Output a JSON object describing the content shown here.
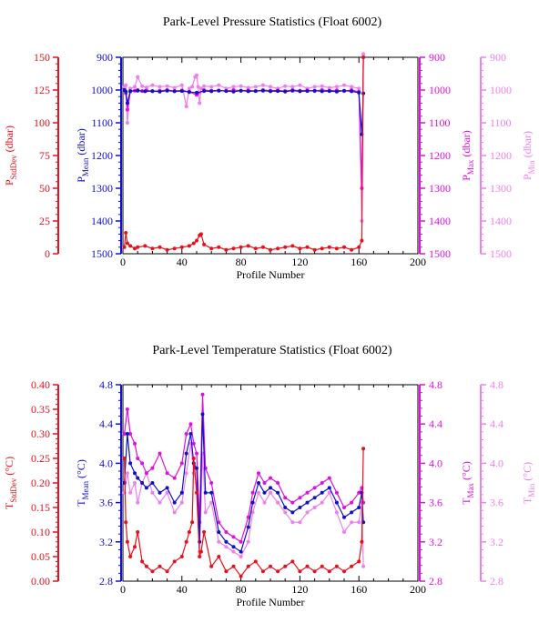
{
  "chart_data": [
    {
      "type": "line",
      "title": "Park-Level Pressure Statistics (Float 6002)",
      "xlabel": "Profile Number",
      "xlim": [
        0,
        200
      ],
      "xticks": [
        "0",
        "40",
        "80",
        "120",
        "160",
        "200"
      ],
      "axes": [
        {
          "key": "std",
          "label": "P",
          "sub": "StdDev",
          "unit": " (dbar)",
          "color": "#e8101a",
          "side": "left-outer",
          "lim": [
            0,
            150
          ],
          "reversed": false,
          "ticks": [
            "0",
            "25",
            "50",
            "75",
            "100",
            "125",
            "150"
          ]
        },
        {
          "key": "mean",
          "label": "P",
          "sub": "Mean",
          "unit": " (dbar)",
          "color": "#1010c8",
          "side": "left-inner",
          "lim": [
            900,
            1500
          ],
          "reversed": true,
          "ticks": [
            "900",
            "1000",
            "1100",
            "1200",
            "1300",
            "1400",
            "1500"
          ]
        },
        {
          "key": "max",
          "label": "P",
          "sub": "Max",
          "unit": " (dbar)",
          "color": "#e010e0",
          "side": "right-inner",
          "lim": [
            900,
            1500
          ],
          "reversed": true,
          "ticks": [
            "900",
            "1000",
            "1100",
            "1200",
            "1300",
            "1400",
            "1500"
          ]
        },
        {
          "key": "min",
          "label": "P",
          "sub": "Min",
          "unit": " (dbar)",
          "color": "#ee80ee",
          "side": "right-outer",
          "lim": [
            900,
            1500
          ],
          "reversed": true,
          "ticks": [
            "900",
            "1000",
            "1100",
            "1200",
            "1300",
            "1400",
            "1500"
          ]
        }
      ],
      "series": [
        {
          "axis": "min",
          "x": [
            1,
            2,
            3,
            5,
            8,
            10,
            13,
            16,
            20,
            25,
            30,
            35,
            40,
            43,
            45,
            47,
            49,
            50,
            51,
            52,
            53,
            55,
            60,
            65,
            70,
            75,
            80,
            85,
            90,
            95,
            100,
            105,
            110,
            115,
            120,
            125,
            130,
            135,
            140,
            145,
            150,
            155,
            160,
            162,
            163
          ],
          "values": [
            990,
            985,
            1100,
            995,
            990,
            960,
            988,
            992,
            985,
            990,
            988,
            993,
            985,
            1050,
            995,
            990,
            960,
            955,
            990,
            1040,
            995,
            988,
            990,
            985,
            995,
            990,
            988,
            993,
            990,
            985,
            990,
            995,
            988,
            990,
            985,
            995,
            990,
            988,
            993,
            990,
            985,
            990,
            995,
            1400,
            890
          ]
        },
        {
          "axis": "max",
          "x": [
            1,
            2,
            3,
            5,
            8,
            10,
            13,
            16,
            20,
            25,
            30,
            35,
            40,
            45,
            50,
            55,
            60,
            65,
            70,
            75,
            80,
            85,
            90,
            95,
            100,
            105,
            110,
            115,
            120,
            125,
            130,
            135,
            140,
            145,
            150,
            155,
            160,
            162,
            163
          ],
          "values": [
            1000,
            1010,
            1060,
            1005,
            1002,
            1000,
            1003,
            1001,
            1004,
            1002,
            1000,
            1003,
            1001,
            1005,
            1015,
            1000,
            1002,
            1001,
            1003,
            1000,
            1002,
            1001,
            1003,
            1000,
            1002,
            1001,
            1003,
            1000,
            1002,
            1001,
            1003,
            1000,
            1002,
            1001,
            1003,
            1000,
            1005,
            1300,
            900
          ]
        },
        {
          "axis": "mean",
          "x": [
            1,
            2,
            3,
            5,
            10,
            15,
            20,
            25,
            30,
            35,
            40,
            45,
            50,
            55,
            60,
            65,
            70,
            75,
            80,
            85,
            90,
            95,
            100,
            105,
            110,
            115,
            120,
            125,
            130,
            135,
            140,
            145,
            150,
            155,
            160,
            162,
            163
          ],
          "values": [
            1000,
            1005,
            1040,
            1003,
            1002,
            1004,
            1003,
            1005,
            1002,
            1004,
            1003,
            1006,
            1008,
            1003,
            1004,
            1002,
            1003,
            1005,
            1002,
            1004,
            1003,
            1002,
            1004,
            1003,
            1005,
            1002,
            1004,
            1003,
            1002,
            1004,
            1003,
            1005,
            1002,
            1004,
            1008,
            1135,
            1010
          ]
        },
        {
          "axis": "std",
          "x": [
            1,
            2,
            3,
            5,
            8,
            10,
            15,
            20,
            25,
            30,
            35,
            40,
            45,
            48,
            50,
            52,
            53,
            55,
            60,
            65,
            70,
            75,
            80,
            85,
            90,
            95,
            100,
            105,
            110,
            115,
            120,
            125,
            130,
            135,
            140,
            145,
            150,
            155,
            160,
            162,
            163
          ],
          "values": [
            5,
            16,
            8,
            6,
            4,
            5,
            6,
            4,
            5,
            3,
            4,
            5,
            6,
            8,
            10,
            14,
            15,
            7,
            4,
            5,
            3,
            4,
            5,
            6,
            4,
            5,
            3,
            4,
            5,
            6,
            4,
            5,
            3,
            4,
            5,
            4,
            5,
            3,
            5,
            10,
            150
          ]
        }
      ]
    },
    {
      "type": "line",
      "title": "Park-Level Temperature Statistics (Float 6002)",
      "xlabel": "Profile Number",
      "xlim": [
        0,
        200
      ],
      "xticks": [
        "0",
        "40",
        "80",
        "120",
        "160",
        "200"
      ],
      "axes": [
        {
          "key": "std",
          "label": "T",
          "sub": "StdDev",
          "unit": " (°C)",
          "color": "#e8101a",
          "side": "left-outer",
          "lim": [
            0,
            0.4
          ],
          "reversed": false,
          "ticks": [
            "0.00",
            "0.05",
            "0.10",
            "0.15",
            "0.20",
            "0.25",
            "0.30",
            "0.35",
            "0.40"
          ]
        },
        {
          "key": "mean",
          "label": "T",
          "sub": "Mean",
          "unit": " (°C)",
          "color": "#1010c8",
          "side": "left-inner",
          "lim": [
            2.8,
            4.8
          ],
          "reversed": false,
          "ticks": [
            "2.8",
            "3.2",
            "3.6",
            "4.0",
            "4.4",
            "4.8"
          ]
        },
        {
          "key": "max",
          "label": "T",
          "sub": "Max",
          "unit": " (°C)",
          "color": "#e010e0",
          "side": "right-inner",
          "lim": [
            2.8,
            4.8
          ],
          "reversed": false,
          "ticks": [
            "2.8",
            "3.2",
            "3.6",
            "4.0",
            "4.4",
            "4.8"
          ]
        },
        {
          "key": "min",
          "label": "T",
          "sub": "Min",
          "unit": " (°C)",
          "color": "#ee80ee",
          "side": "right-outer",
          "lim": [
            2.8,
            4.8
          ],
          "reversed": false,
          "ticks": [
            "2.8",
            "3.2",
            "3.6",
            "4.0",
            "4.4",
            "4.8"
          ]
        }
      ],
      "series": [
        {
          "axis": "min",
          "x": [
            1,
            3,
            5,
            8,
            10,
            13,
            16,
            20,
            25,
            30,
            35,
            40,
            43,
            46,
            48,
            50,
            52,
            54,
            56,
            60,
            65,
            70,
            75,
            80,
            85,
            88,
            92,
            96,
            100,
            105,
            110,
            115,
            120,
            125,
            130,
            135,
            140,
            145,
            150,
            155,
            160,
            162,
            163
          ],
          "values": [
            3.7,
            3.9,
            3.7,
            3.8,
            3.6,
            3.8,
            3.9,
            3.7,
            3.6,
            3.7,
            3.5,
            3.6,
            3.9,
            4.2,
            3.9,
            3.8,
            3.1,
            4.1,
            3.5,
            3.6,
            3.2,
            3.15,
            3.1,
            3.05,
            3.2,
            3.5,
            3.7,
            3.6,
            3.7,
            3.6,
            3.5,
            3.4,
            3.4,
            3.5,
            3.55,
            3.6,
            3.7,
            3.5,
            3.3,
            3.4,
            3.4,
            3.6,
            2.95
          ]
        },
        {
          "axis": "max",
          "x": [
            1,
            3,
            5,
            8,
            10,
            13,
            16,
            20,
            25,
            30,
            35,
            40,
            43,
            46,
            48,
            50,
            52,
            54,
            56,
            60,
            65,
            70,
            75,
            80,
            85,
            88,
            92,
            96,
            100,
            105,
            110,
            115,
            120,
            125,
            130,
            135,
            140,
            145,
            150,
            155,
            160,
            162,
            163
          ],
          "values": [
            4.3,
            4.55,
            4.3,
            4.2,
            4.05,
            4.0,
            3.9,
            3.95,
            4.1,
            3.9,
            3.85,
            4.0,
            4.3,
            4.4,
            4.2,
            4.1,
            3.4,
            4.7,
            3.95,
            3.8,
            3.4,
            3.3,
            3.25,
            3.2,
            3.45,
            3.7,
            3.9,
            3.8,
            3.85,
            3.8,
            3.65,
            3.6,
            3.65,
            3.7,
            3.75,
            3.8,
            3.85,
            3.7,
            3.55,
            3.6,
            3.7,
            3.75,
            3.6
          ]
        },
        {
          "axis": "mean",
          "x": [
            1,
            3,
            5,
            8,
            10,
            13,
            16,
            20,
            25,
            30,
            35,
            40,
            43,
            46,
            48,
            50,
            52,
            54,
            56,
            60,
            65,
            70,
            75,
            80,
            85,
            88,
            92,
            96,
            100,
            105,
            110,
            115,
            120,
            125,
            130,
            135,
            140,
            145,
            150,
            155,
            160,
            162,
            163
          ],
          "values": [
            3.8,
            4.3,
            4.0,
            3.9,
            3.85,
            3.8,
            3.75,
            3.8,
            3.7,
            3.75,
            3.6,
            3.7,
            4.1,
            4.3,
            4.0,
            3.95,
            3.2,
            4.5,
            3.7,
            3.7,
            3.3,
            3.2,
            3.15,
            3.1,
            3.35,
            3.6,
            3.8,
            3.7,
            3.75,
            3.7,
            3.55,
            3.5,
            3.55,
            3.6,
            3.65,
            3.7,
            3.75,
            3.6,
            3.45,
            3.5,
            3.55,
            3.7,
            3.4
          ]
        },
        {
          "axis": "std",
          "x": [
            1,
            2,
            3,
            5,
            8,
            10,
            13,
            16,
            20,
            25,
            30,
            35,
            40,
            43,
            45,
            47,
            48,
            50,
            52,
            53,
            55,
            60,
            65,
            70,
            75,
            80,
            85,
            90,
            95,
            100,
            105,
            110,
            115,
            120,
            125,
            130,
            135,
            140,
            145,
            150,
            155,
            160,
            162,
            163
          ],
          "values": [
            0.25,
            0.12,
            0.08,
            0.05,
            0.07,
            0.1,
            0.04,
            0.03,
            0.02,
            0.03,
            0.02,
            0.04,
            0.05,
            0.08,
            0.1,
            0.12,
            0.25,
            0.18,
            0.05,
            0.06,
            0.1,
            0.03,
            0.05,
            0.02,
            0.03,
            0.01,
            0.03,
            0.04,
            0.02,
            0.03,
            0.02,
            0.03,
            0.04,
            0.02,
            0.03,
            0.02,
            0.03,
            0.02,
            0.03,
            0.02,
            0.03,
            0.04,
            0.08,
            0.27
          ]
        }
      ]
    }
  ]
}
